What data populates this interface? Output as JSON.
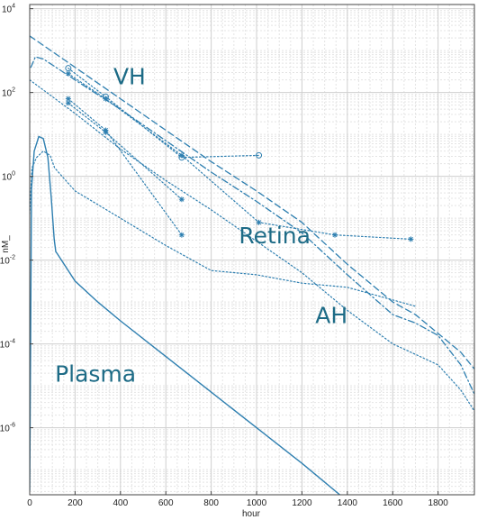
{
  "chart_data": {
    "type": "line",
    "title": "",
    "xlabel": "hour",
    "ylabel": "nM_",
    "xlim": [
      0,
      1960
    ],
    "ylim_log10": [
      -7.6,
      4.1
    ],
    "y_scale": "log",
    "grid": "major and minor",
    "line_color": "#2e7fb0",
    "annotation_color": "#1d6b86",
    "x_ticks": [
      0,
      200,
      400,
      600,
      800,
      1000,
      1200,
      1400,
      1600,
      1800
    ],
    "x_tick_labels": [
      "0",
      "200",
      "400",
      "600",
      "800",
      "1000",
      "1200",
      "1400",
      "1600",
      "1800"
    ],
    "y_ticks": [
      {
        "exp": 4,
        "label_base": "10",
        "label_exp": "4"
      },
      {
        "exp": 2,
        "label_base": "10",
        "label_exp": "2"
      },
      {
        "exp": 0,
        "label_base": "10",
        "label_exp": "0"
      },
      {
        "exp": -2,
        "label_base": "10",
        "label_exp": "-2"
      },
      {
        "exp": -4,
        "label_base": "10",
        "label_exp": "-4"
      },
      {
        "exp": -6,
        "label_base": "10",
        "label_exp": "-6"
      }
    ],
    "annotations": [
      {
        "text": "VH",
        "x": 440,
        "y_log10": 2.2
      },
      {
        "text": "Retina",
        "x": 1080,
        "y_log10": -1.6
      },
      {
        "text": "AH",
        "x": 1330,
        "y_log10": -3.5
      },
      {
        "text": "Plasma",
        "x": 290,
        "y_log10": -4.9
      }
    ],
    "series": [
      {
        "style": "dashed",
        "width": 1.3,
        "marker": "none",
        "x": [
          0,
          200,
          400,
          600,
          800,
          1000,
          1200,
          1400,
          1600,
          1700,
          1800,
          1900,
          1960
        ],
        "y_log10": [
          3.35,
          2.6,
          1.85,
          1.1,
          0.35,
          -0.35,
          -1.1,
          -2.1,
          -3.0,
          -3.3,
          -3.75,
          -4.2,
          -4.6
        ]
      },
      {
        "style": "dashdot",
        "width": 1.3,
        "marker": "none",
        "x": [
          5,
          25,
          60,
          200,
          400,
          600,
          800,
          1000,
          1200,
          1400,
          1600,
          1700,
          1800,
          1900,
          1960
        ],
        "y_log10": [
          2.6,
          2.85,
          2.8,
          2.3,
          1.6,
          0.85,
          0.1,
          -0.6,
          -1.35,
          -2.35,
          -3.3,
          -3.5,
          -3.8,
          -4.5,
          -5.2
        ]
      },
      {
        "style": "dotted",
        "width": 1.2,
        "marker": "none",
        "x": [
          0,
          200,
          400,
          600,
          800,
          1000,
          1200,
          1400,
          1600,
          1700,
          1800,
          1900,
          1960
        ],
        "y_log10": [
          2.3,
          1.5,
          0.65,
          -0.1,
          -0.8,
          -1.55,
          -2.3,
          -3.2,
          -4.0,
          -4.25,
          -4.5,
          -5.1,
          -5.6
        ]
      },
      {
        "style": "dotted",
        "width": 1.2,
        "marker": "none",
        "x": [
          0,
          10,
          30,
          60,
          90,
          110,
          200,
          400,
          600,
          800,
          1000,
          1200,
          1400,
          1500,
          1700
        ],
        "y_log10": [
          -0.9,
          0.2,
          0.45,
          0.6,
          0.5,
          0.2,
          -0.35,
          -1.0,
          -1.65,
          -2.25,
          -2.35,
          -2.55,
          -2.65,
          -2.8,
          -3.1
        ]
      },
      {
        "style": "dotted",
        "width": 1.2,
        "marker": "circle",
        "x": [
          170,
          335,
          670,
          1010
        ],
        "y_log10": [
          2.58,
          1.9,
          0.45,
          0.5
        ]
      },
      {
        "style": "dotted",
        "width": 1.2,
        "marker": "star",
        "x": [
          170,
          335,
          670,
          1010,
          1345,
          1680
        ],
        "y_log10": [
          2.45,
          1.85,
          0.5,
          -1.1,
          -1.4,
          -1.5
        ]
      },
      {
        "style": "dotted",
        "width": 1.2,
        "marker": "star",
        "x": [
          170,
          335,
          670
        ],
        "y_log10": [
          1.85,
          1.1,
          -1.4
        ]
      },
      {
        "style": "dotted",
        "width": 1.2,
        "marker": "star",
        "x": [
          170,
          335,
          670
        ],
        "y_log10": [
          1.75,
          1.05,
          -0.55
        ]
      },
      {
        "style": "solid",
        "width": 1.4,
        "marker": "none",
        "x": [
          0,
          8,
          20,
          40,
          60,
          80,
          95,
          108,
          115,
          122,
          200,
          300,
          400,
          600,
          800,
          1000,
          1200,
          1400,
          1450
        ],
        "y_log10": [
          -7.5,
          -0.3,
          0.6,
          0.95,
          0.9,
          0.45,
          -0.5,
          -1.5,
          -1.8,
          -1.85,
          -2.5,
          -3.0,
          -3.45,
          -4.3,
          -5.15,
          -6.0,
          -6.85,
          -7.75,
          -8.0
        ]
      }
    ]
  }
}
